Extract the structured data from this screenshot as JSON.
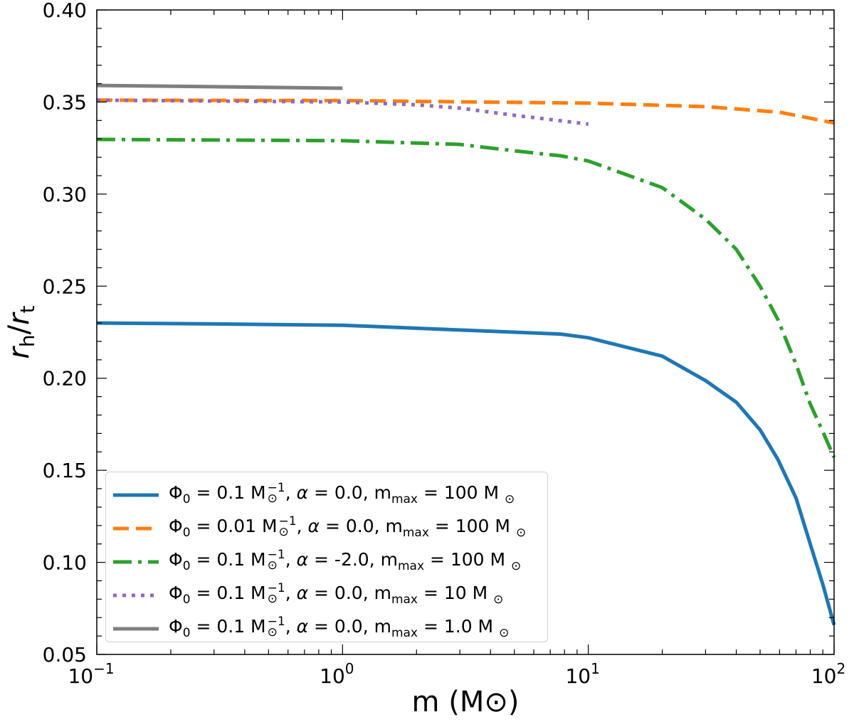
{
  "chart_data": {
    "type": "line",
    "xlabel": "m (M⊙)",
    "ylabel_main": "r",
    "ylabel_sub1": "h",
    "ylabel_sep": "/",
    "ylabel_sub2": "t",
    "xscale": "log",
    "xlim": [
      0.1,
      100
    ],
    "ylim": [
      0.05,
      0.4
    ],
    "x_ticks": [
      0.1,
      1,
      10,
      100
    ],
    "x_tick_labels": [
      [
        "10",
        "−1"
      ],
      [
        "10",
        "0"
      ],
      [
        "10",
        "1"
      ],
      [
        "10",
        "2"
      ]
    ],
    "y_ticks": [
      0.05,
      0.1,
      0.15,
      0.2,
      0.25,
      0.3,
      0.35,
      0.4
    ],
    "y_tick_labels": [
      "0.05",
      "0.10",
      "0.15",
      "0.20",
      "0.25",
      "0.30",
      "0.35",
      "0.40"
    ],
    "grid": false,
    "legend_placement": "lower-left",
    "series": [
      {
        "color": "#1f77b4",
        "style": "solid",
        "label_parts": {
          "phi0": "0.1",
          "alpha": "0.0",
          "mmax": "100"
        },
        "x": [
          0.1,
          0.3,
          1,
          3,
          7.7,
          10,
          20,
          30,
          40,
          50,
          59,
          70,
          80,
          90,
          100
        ],
        "y": [
          0.23,
          0.2295,
          0.2288,
          0.2262,
          0.224,
          0.222,
          0.212,
          0.1987,
          0.187,
          0.172,
          0.156,
          0.135,
          0.11,
          0.088,
          0.066
        ]
      },
      {
        "color": "#ff7f0e",
        "style": "dashed",
        "label_parts": {
          "phi0": "0.01",
          "alpha": "0.0",
          "mmax": "100"
        },
        "x": [
          0.1,
          1,
          10,
          30,
          60,
          100
        ],
        "y": [
          0.351,
          0.3508,
          0.3494,
          0.3475,
          0.3445,
          0.3386
        ]
      },
      {
        "color": "#2ca02c",
        "style": "dashdot",
        "label_parts": {
          "phi0": "0.1",
          "alpha": "-2.0",
          "mmax": "100"
        },
        "x": [
          0.1,
          1,
          3,
          5,
          7.7,
          10,
          20,
          30,
          40,
          50,
          59,
          70,
          80,
          90,
          100
        ],
        "y": [
          0.3297,
          0.329,
          0.327,
          0.3235,
          0.3208,
          0.318,
          0.3035,
          0.2864,
          0.27,
          0.25,
          0.232,
          0.2076,
          0.186,
          0.171,
          0.157
        ]
      },
      {
        "color": "#9467bd",
        "style": "dotted",
        "label_parts": {
          "phi0": "0.1",
          "alpha": "0.0",
          "mmax": "10"
        },
        "x": [
          0.1,
          1,
          2,
          3,
          5,
          7,
          10
        ],
        "y": [
          0.351,
          0.35,
          0.3485,
          0.3467,
          0.3428,
          0.3405,
          0.338
        ]
      },
      {
        "color": "#7f7f7f",
        "style": "solid",
        "label_parts": {
          "phi0": "0.1",
          "alpha": "0.0",
          "mmax": "1.0"
        },
        "x": [
          0.1,
          0.3,
          1
        ],
        "y": [
          0.359,
          0.3583,
          0.3575
        ]
      }
    ],
    "legend_template": {
      "phi": "Φ",
      "phi_sub": "0",
      "eq": " = ",
      "unit": " M",
      "sun": "⊙",
      "inv": "−1",
      "alpha": "α",
      "m": "m",
      "m_sub": "max"
    }
  }
}
